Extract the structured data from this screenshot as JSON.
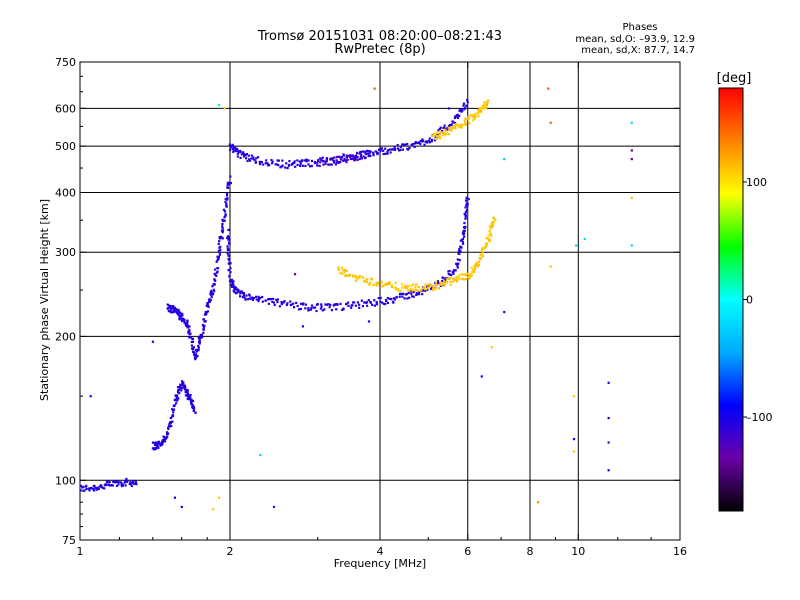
{
  "chart_data": {
    "type": "scatter",
    "title": "Tromsø 20151031 08:20:00–08:21:43",
    "subtitle": "RwPretec (8p)",
    "phases_header": "Phases",
    "phases_o": "mean, sd,O: –93.9, 12.9",
    "phases_x": "mean, sd,X:  87.7, 14.7",
    "xlabel": "Frequency [MHz]",
    "ylabel": "Stationary phase Virtual Height [km]",
    "x_scale": "log",
    "y_scale": "log",
    "xlim": [
      1,
      16
    ],
    "ylim": [
      75,
      750
    ],
    "x_ticks": [
      {
        "value": 1,
        "label": "1"
      },
      {
        "value": 2,
        "label": "2"
      },
      {
        "value": 4,
        "label": "4"
      },
      {
        "value": 6,
        "label": "6"
      },
      {
        "value": 8,
        "label": "8"
      },
      {
        "value": 10,
        "label": "10"
      },
      {
        "value": 16,
        "label": "16"
      }
    ],
    "y_ticks": [
      {
        "value": 75,
        "label": "75"
      },
      {
        "value": 100,
        "label": "100"
      },
      {
        "value": 200,
        "label": "200"
      },
      {
        "value": 300,
        "label": "300"
      },
      {
        "value": 400,
        "label": "400"
      },
      {
        "value": 500,
        "label": "500"
      },
      {
        "value": 600,
        "label": "600"
      },
      {
        "value": 750,
        "label": "750"
      }
    ],
    "grid_x": [
      2,
      4,
      6,
      8,
      10
    ],
    "grid_y": [
      100,
      200,
      300,
      400,
      500,
      600
    ],
    "colorbar": {
      "label": "[deg]",
      "min": -180,
      "max": 180,
      "ticks": [
        {
          "value": 100,
          "label": "100"
        },
        {
          "value": 0,
          "label": "0"
        },
        {
          "value": -100,
          "label": "–100"
        }
      ],
      "colormap": [
        "#000000",
        "#6a00a8",
        "#0000ff",
        "#00aaff",
        "#00ffff",
        "#00ff00",
        "#ffff00",
        "#ff8000",
        "#ff0000"
      ]
    },
    "traces": [
      {
        "name": "",
        "kind": "curve",
        "phase": -105,
        "spread": 8,
        "pts": [
          [
            1.0,
            96
          ],
          [
            1.1,
            97
          ],
          [
            1.2,
            99
          ],
          [
            1.3,
            99
          ]
        ]
      },
      {
        "name": "",
        "kind": "curve",
        "phase": -105,
        "spread": 8,
        "pts": [
          [
            1.4,
            118
          ],
          [
            1.45,
            119
          ],
          [
            1.5,
            125
          ],
          [
            1.55,
            145
          ],
          [
            1.6,
            160
          ],
          [
            1.65,
            150
          ],
          [
            1.7,
            140
          ]
        ]
      },
      {
        "name": "",
        "kind": "curve",
        "phase": -105,
        "spread": 8,
        "pts": [
          [
            1.5,
            230
          ],
          [
            1.55,
            228
          ],
          [
            1.6,
            220
          ],
          [
            1.65,
            210
          ],
          [
            1.7,
            180
          ],
          [
            1.75,
            200
          ],
          [
            1.8,
            230
          ],
          [
            1.85,
            250
          ],
          [
            1.9,
            300
          ],
          [
            1.95,
            360
          ],
          [
            2.0,
            430
          ]
        ]
      },
      {
        "name": "",
        "kind": "curve",
        "phase": -105,
        "spread": 6,
        "pts": [
          [
            2.0,
            500
          ],
          [
            2.1,
            480
          ],
          [
            2.3,
            465
          ],
          [
            2.6,
            458
          ],
          [
            2.9,
            462
          ],
          [
            3.3,
            470
          ],
          [
            3.7,
            480
          ],
          [
            4.1,
            490
          ],
          [
            4.6,
            500
          ],
          [
            5.1,
            520
          ],
          [
            5.6,
            560
          ],
          [
            6.0,
            620
          ]
        ]
      },
      {
        "name": "",
        "kind": "curve",
        "phase": -120,
        "spread": 10,
        "pts": [
          [
            3.0,
            460
          ],
          [
            3.4,
            470
          ],
          [
            3.8,
            482
          ]
        ]
      },
      {
        "name": "",
        "kind": "curve",
        "phase": -105,
        "spread": 5,
        "pts": [
          [
            1.98,
            330
          ],
          [
            2.0,
            265
          ],
          [
            2.05,
            248
          ],
          [
            2.2,
            240
          ],
          [
            2.5,
            235
          ],
          [
            2.9,
            230
          ],
          [
            3.3,
            230
          ],
          [
            3.8,
            235
          ],
          [
            4.3,
            240
          ],
          [
            4.8,
            248
          ],
          [
            5.3,
            258
          ],
          [
            5.7,
            280
          ],
          [
            5.9,
            330
          ],
          [
            6.0,
            395
          ]
        ]
      },
      {
        "name": "",
        "kind": "curve",
        "phase": 110,
        "spread": 6,
        "pts": [
          [
            3.3,
            275
          ],
          [
            3.6,
            265
          ],
          [
            4.0,
            258
          ],
          [
            4.5,
            252
          ],
          [
            5.0,
            253
          ],
          [
            5.5,
            260
          ],
          [
            6.0,
            268
          ],
          [
            6.3,
            285
          ],
          [
            6.6,
            320
          ],
          [
            6.8,
            360
          ]
        ]
      },
      {
        "name": "",
        "kind": "curve",
        "phase": 110,
        "spread": 8,
        "pts": [
          [
            5.1,
            520
          ],
          [
            5.5,
            540
          ],
          [
            5.9,
            560
          ],
          [
            6.3,
            590
          ],
          [
            6.6,
            620
          ]
        ]
      }
    ],
    "isolated_points": [
      {
        "x": 1.05,
        "y": 150,
        "phase": -100
      },
      {
        "x": 1.4,
        "y": 195,
        "phase": -100
      },
      {
        "x": 1.9,
        "y": 610,
        "phase": 20
      },
      {
        "x": 1.95,
        "y": 600,
        "phase": 110
      },
      {
        "x": 2.3,
        "y": 113,
        "phase": -20
      },
      {
        "x": 2.45,
        "y": 88,
        "phase": -120
      },
      {
        "x": 2.7,
        "y": 270,
        "phase": -140
      },
      {
        "x": 2.8,
        "y": 210,
        "phase": -100
      },
      {
        "x": 3.8,
        "y": 215,
        "phase": -100
      },
      {
        "x": 3.9,
        "y": 660,
        "phase": 150
      },
      {
        "x": 5.5,
        "y": 600,
        "phase": -100
      },
      {
        "x": 6.4,
        "y": 165,
        "phase": -100
      },
      {
        "x": 6.7,
        "y": 190,
        "phase": 110
      },
      {
        "x": 7.1,
        "y": 225,
        "phase": -100
      },
      {
        "x": 7.1,
        "y": 470,
        "phase": -30
      },
      {
        "x": 8.3,
        "y": 90,
        "phase": 130
      },
      {
        "x": 8.7,
        "y": 660,
        "phase": 150
      },
      {
        "x": 8.8,
        "y": 560,
        "phase": 150
      },
      {
        "x": 8.8,
        "y": 280,
        "phase": 110
      },
      {
        "x": 9.8,
        "y": 150,
        "phase": 110
      },
      {
        "x": 9.8,
        "y": 122,
        "phase": -100
      },
      {
        "x": 9.8,
        "y": 115,
        "phase": 110
      },
      {
        "x": 9.9,
        "y": 310,
        "phase": -20
      },
      {
        "x": 10.3,
        "y": 320,
        "phase": -20
      },
      {
        "x": 11.5,
        "y": 160,
        "phase": -100
      },
      {
        "x": 11.5,
        "y": 135,
        "phase": -100
      },
      {
        "x": 11.5,
        "y": 120,
        "phase": -120
      },
      {
        "x": 11.5,
        "y": 105,
        "phase": -100
      },
      {
        "x": 12.8,
        "y": 560,
        "phase": -20
      },
      {
        "x": 12.8,
        "y": 490,
        "phase": -140
      },
      {
        "x": 12.8,
        "y": 470,
        "phase": -140
      },
      {
        "x": 12.8,
        "y": 390,
        "phase": 110
      },
      {
        "x": 12.8,
        "y": 310,
        "phase": -20
      },
      {
        "x": 1.55,
        "y": 92,
        "phase": -100
      },
      {
        "x": 1.6,
        "y": 88,
        "phase": -100
      },
      {
        "x": 1.9,
        "y": 92,
        "phase": 110
      },
      {
        "x": 1.85,
        "y": 87,
        "phase": 110
      }
    ]
  }
}
